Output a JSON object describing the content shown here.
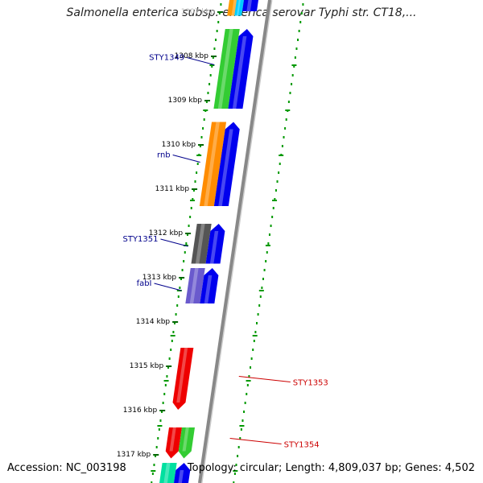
{
  "title": "Salmonella enterica subsp. enterica serovar Typhi str. CT18,...",
  "footer": {
    "accession": "Accession: NC_003198",
    "summary": "Topology: circular; Length: 4,809,037 bp; Genes: 4,502"
  },
  "ticks": [
    {
      "label": "1307 kbp",
      "kbp": 1307
    },
    {
      "label": "1308 kbp",
      "kbp": 1308
    },
    {
      "label": "1309 kbp",
      "kbp": 1309
    },
    {
      "label": "1310 kbp",
      "kbp": 1310
    },
    {
      "label": "1311 kbp",
      "kbp": 1311
    },
    {
      "label": "1312 kbp",
      "kbp": 1312
    },
    {
      "label": "1313 kbp",
      "kbp": 1313
    },
    {
      "label": "1314 kbp",
      "kbp": 1314
    },
    {
      "label": "1315 kbp",
      "kbp": 1315
    },
    {
      "label": "1316 kbp",
      "kbp": 1316
    },
    {
      "label": "1317 kbp",
      "kbp": 1317
    }
  ],
  "features": [
    {
      "lane": "outer",
      "start": 1306.6,
      "end": 1307.1,
      "color": "#ff9900"
    },
    {
      "lane": "outer",
      "start": 1306.6,
      "end": 1307.1,
      "color": "#00ccff",
      "narrow": true
    },
    {
      "lane": "inner",
      "start": 1306.6,
      "end": 1307.0,
      "color": "#0000ee"
    },
    {
      "lane": "outer",
      "start": 1307.4,
      "end": 1309.2,
      "color": "#33cc33"
    },
    {
      "lane": "inner",
      "start": 1307.4,
      "end": 1309.2,
      "color": "#0000ee",
      "arrow": "up"
    },
    {
      "lane": "outer",
      "start": 1309.5,
      "end": 1311.4,
      "color": "#ff8c00"
    },
    {
      "lane": "inner",
      "start": 1309.5,
      "end": 1311.4,
      "color": "#0000ee",
      "arrow": "up"
    },
    {
      "lane": "outer",
      "start": 1311.8,
      "end": 1312.7,
      "color": "#555555"
    },
    {
      "lane": "inner",
      "start": 1311.8,
      "end": 1312.7,
      "color": "#0000ee",
      "arrow": "up"
    },
    {
      "lane": "outer",
      "start": 1312.8,
      "end": 1313.6,
      "color": "#6a5acd"
    },
    {
      "lane": "inner",
      "start": 1312.8,
      "end": 1313.6,
      "color": "#0000ee",
      "arrow": "up"
    },
    {
      "lane": "reverse-inner",
      "start": 1314.6,
      "end": 1316.0,
      "color": "#ee0000",
      "arrow": "down"
    },
    {
      "lane": "reverse-inner",
      "start": 1316.4,
      "end": 1317.1,
      "color": "#ee0000",
      "arrow": "down"
    },
    {
      "lane": "reverse-outer",
      "start": 1316.4,
      "end": 1317.1,
      "color": "#33cc33",
      "arrow": "down"
    },
    {
      "lane": "outer",
      "start": 1317.2,
      "end": 1318.0,
      "color": "#00e0a0"
    },
    {
      "lane": "inner",
      "start": 1317.2,
      "end": 1318.0,
      "color": "#0000ee",
      "arrow": "up"
    }
  ],
  "gene_labels": [
    {
      "text": "STY1349",
      "kbp": 1308.1,
      "side": "left",
      "color": "#00008b"
    },
    {
      "text": "rnb",
      "kbp": 1310.3,
      "side": "left",
      "color": "#00008b"
    },
    {
      "text": "STY1351",
      "kbp": 1312.2,
      "side": "left",
      "color": "#00008b"
    },
    {
      "text": "fabI",
      "kbp": 1313.2,
      "side": "left",
      "color": "#00008b"
    },
    {
      "text": "STY1353",
      "kbp": 1315.3,
      "side": "right",
      "color": "#cc0000"
    },
    {
      "text": "STY1354",
      "kbp": 1316.7,
      "side": "right",
      "color": "#cc0000"
    }
  ],
  "colors": {
    "backbone": "#888888",
    "dots": "#009900",
    "tick": "#006600"
  }
}
